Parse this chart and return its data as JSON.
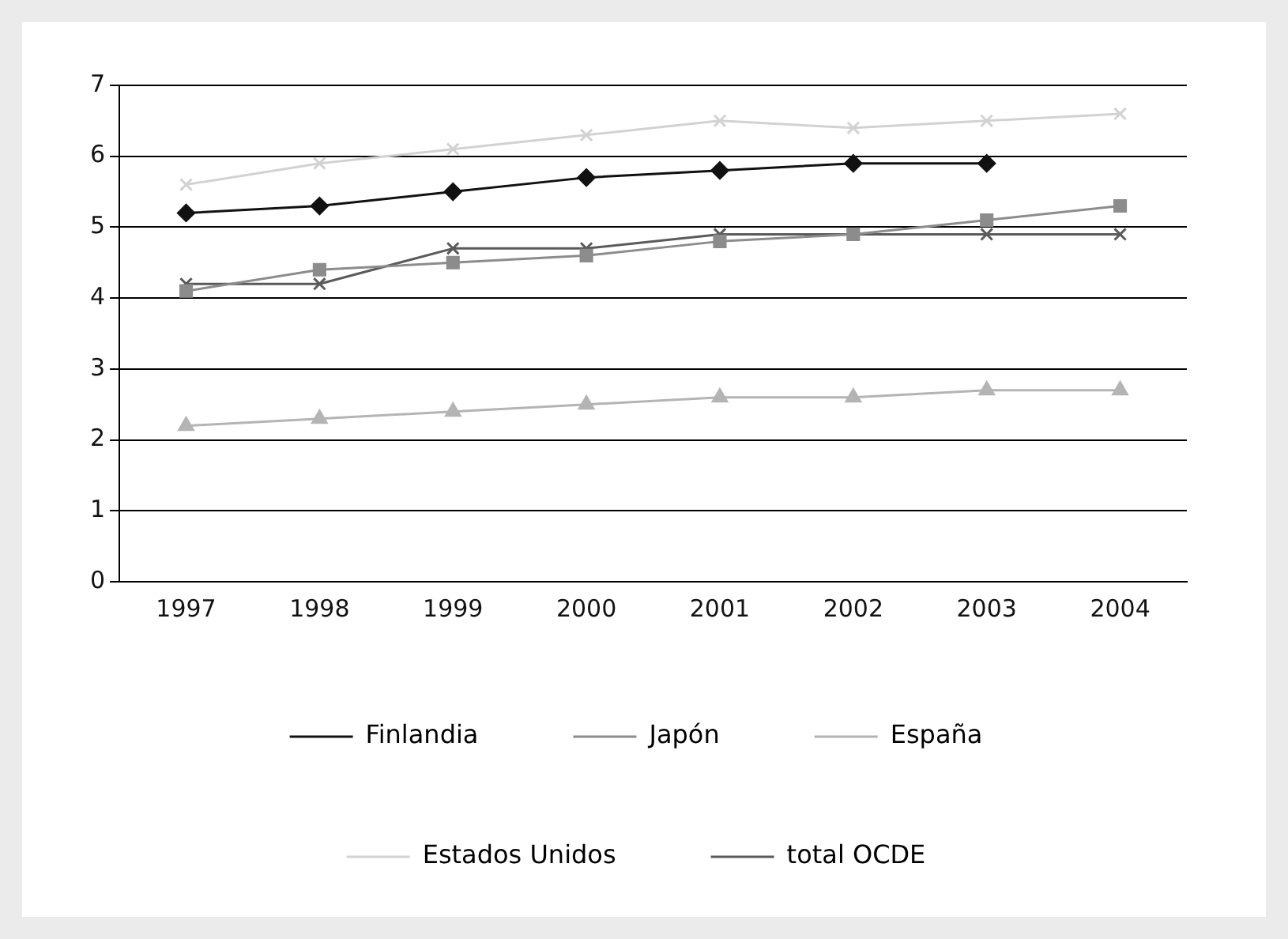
{
  "chart_data": {
    "type": "line",
    "categories": [
      "1997",
      "1998",
      "1999",
      "2000",
      "2001",
      "2002",
      "2003",
      "2004"
    ],
    "series": [
      {
        "name": "Finlandia",
        "color": "#111111",
        "marker": "diamond",
        "values": [
          5.2,
          5.3,
          5.5,
          5.7,
          5.8,
          5.9,
          5.9,
          null
        ]
      },
      {
        "name": "Japón",
        "color": "#8c8c8c",
        "marker": "square",
        "values": [
          4.1,
          4.4,
          4.5,
          4.6,
          4.8,
          4.9,
          5.1,
          5.3
        ]
      },
      {
        "name": "España",
        "color": "#b4b4b4",
        "marker": "triangle",
        "values": [
          2.2,
          2.3,
          2.4,
          2.5,
          2.6,
          2.6,
          2.7,
          2.7
        ]
      },
      {
        "name": "Estados Unidos",
        "color": "#d2d2d2",
        "marker": "cross",
        "values": [
          5.6,
          5.9,
          6.1,
          6.3,
          6.5,
          6.4,
          6.5,
          6.6
        ]
      },
      {
        "name": "total OCDE",
        "color": "#5a5a5a",
        "marker": "cross",
        "values": [
          4.2,
          4.2,
          4.7,
          4.7,
          4.9,
          4.9,
          4.9,
          4.9
        ]
      }
    ],
    "ylim": [
      0,
      7
    ],
    "yticks": [
      0,
      1,
      2,
      3,
      4,
      5,
      6,
      7
    ],
    "grid": "y",
    "legend": "bottom",
    "line_style": "solid"
  }
}
